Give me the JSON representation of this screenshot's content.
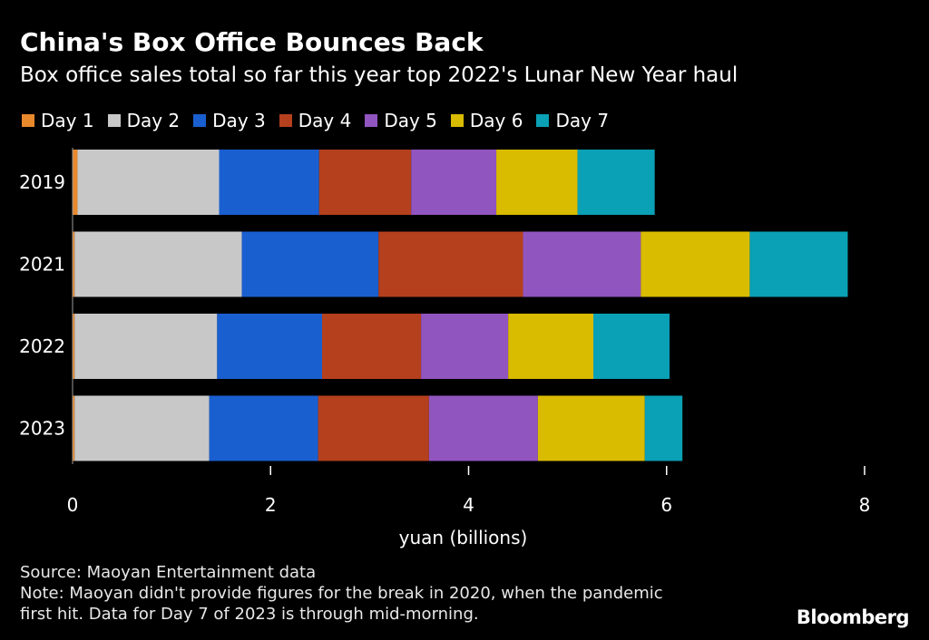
{
  "header": {
    "title": "China's Box Office Bounces Back",
    "subtitle": "Box office sales total so far this year top 2022's Lunar New Year haul"
  },
  "footer": {
    "source": "Source: Maoyan Entertainment data",
    "note_line1": "Note: Maoyan didn't provide figures for the break in 2020, when the pandemic",
    "note_line2": "first hit. Data for Day 7 of 2023 is through mid-morning."
  },
  "brand": "Bloomberg",
  "chart_data": {
    "type": "bar",
    "orientation": "horizontal",
    "stacked": true,
    "categories": [
      "2019",
      "2021",
      "2022",
      "2023"
    ],
    "series": [
      {
        "name": "Day 1",
        "color": "#E8892C",
        "values": [
          0.05,
          0.02,
          0.02,
          0.02
        ]
      },
      {
        "name": "Day 2",
        "color": "#C8C8C8",
        "values": [
          1.43,
          1.69,
          1.44,
          1.36
        ]
      },
      {
        "name": "Day 3",
        "color": "#1A5FD0",
        "values": [
          1.01,
          1.38,
          1.06,
          1.1
        ]
      },
      {
        "name": "Day 4",
        "color": "#B5401E",
        "values": [
          0.93,
          1.46,
          1.0,
          1.12
        ]
      },
      {
        "name": "Day 5",
        "color": "#9155BF",
        "values": [
          0.86,
          1.19,
          0.88,
          1.1
        ]
      },
      {
        "name": "Day 6",
        "color": "#D9BB00",
        "values": [
          0.82,
          1.1,
          0.86,
          1.08
        ]
      },
      {
        "name": "Day 7",
        "color": "#0AA0B5",
        "values": [
          0.78,
          0.99,
          0.77,
          0.38
        ]
      }
    ],
    "xlabel": "yuan (billions)",
    "xlim": [
      0,
      8
    ],
    "xticks": [
      0,
      2,
      4,
      6,
      8
    ],
    "grid": false,
    "legend": "top-left"
  }
}
